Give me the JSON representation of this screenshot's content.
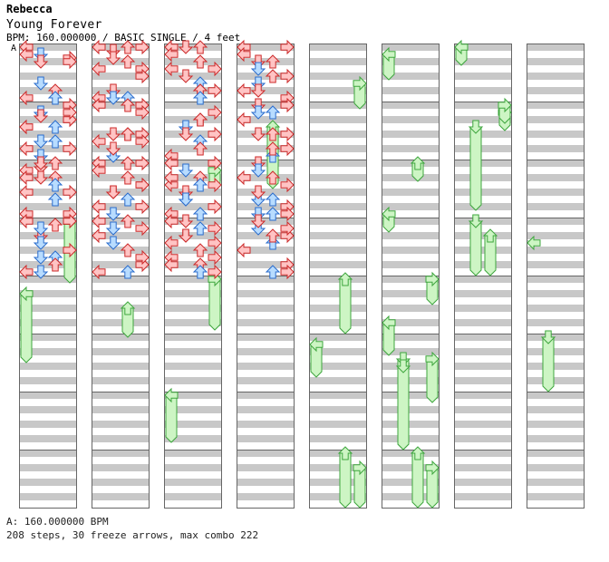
{
  "header": {
    "artist": "Rebecca",
    "title": "Young Forever",
    "info": "BPM: 160.000000 / BASIC SINGLE / 4 feet",
    "bpm_marker": "A"
  },
  "footer": {
    "bpm_line": "A: 160.000000 BPM",
    "stats_line": "208 steps, 30 freeze arrows, max combo 222"
  },
  "colors": {
    "arrow_normal_fill": "#ffc4c4",
    "arrow_normal_stroke": "#cc2a2a",
    "arrow_alt_fill": "#b8dcff",
    "arrow_alt_stroke": "#2a6ccc",
    "freeze_fill": "#cdf5c4",
    "freeze_stroke": "#3ea63e",
    "stripe": "#c8c8c8"
  },
  "chart_data": {
    "type": "step-chart",
    "lanes": [
      "left",
      "down",
      "up",
      "right"
    ],
    "measures_per_column": 8,
    "columns": 8,
    "rows_per_measure": 16,
    "steps": [
      [
        0,
        0,
        2,
        1
      ],
      [
        0,
        0,
        12,
        2
      ],
      [
        0,
        0,
        3,
        3
      ],
      [
        0,
        0,
        4,
        3
      ],
      [
        0,
        0,
        0,
        4
      ],
      [
        0,
        0,
        2,
        4
      ],
      [
        0,
        0,
        14,
        4
      ],
      [
        0,
        0,
        10,
        5
      ],
      [
        0,
        0,
        4,
        5
      ],
      [
        0,
        0,
        14,
        6
      ],
      [
        0,
        1,
        6,
        0
      ],
      [
        0,
        1,
        2,
        1
      ],
      [
        0,
        1,
        14,
        1
      ],
      [
        0,
        1,
        10,
        2
      ],
      [
        0,
        1,
        4,
        3
      ],
      [
        0,
        1,
        0,
        3
      ],
      [
        0,
        1,
        12,
        3
      ],
      [
        0,
        1,
        6,
        4
      ],
      [
        0,
        1,
        12,
        4
      ],
      [
        0,
        1,
        3,
        5
      ],
      [
        0,
        1,
        10,
        5
      ],
      [
        0,
        1,
        6,
        6
      ],
      [
        0,
        1,
        4,
        7
      ],
      [
        0,
        1,
        2,
        7
      ],
      [
        0,
        2,
        2,
        0
      ],
      [
        0,
        2,
        14,
        0
      ],
      [
        0,
        2,
        8,
        0
      ],
      [
        0,
        2,
        1,
        1
      ],
      [
        0,
        2,
        4,
        1
      ],
      [
        0,
        2,
        4,
        2
      ],
      [
        0,
        2,
        10,
        2
      ],
      [
        0,
        2,
        8,
        3
      ],
      [
        0,
        2,
        14,
        3
      ],
      [
        0,
        2,
        4,
        4
      ],
      [
        0,
        2,
        0,
        5
      ],
      [
        0,
        2,
        0,
        6
      ],
      [
        0,
        2,
        6,
        6
      ],
      [
        0,
        3,
        0,
        0
      ],
      [
        0,
        3,
        4,
        1
      ],
      [
        0,
        3,
        10,
        1
      ],
      [
        0,
        3,
        14,
        1
      ],
      [
        0,
        3,
        1,
        2
      ],
      [
        0,
        3,
        10,
        2
      ],
      [
        0,
        3,
        8,
        3
      ],
      [
        0,
        3,
        0,
        3
      ],
      [
        0,
        3,
        14,
        4
      ],
      [
        0,
        3,
        6,
        5
      ],
      [
        0,
        3,
        2,
        5
      ],
      [
        0,
        3,
        12,
        6
      ],
      [
        0,
        3,
        0,
        7
      ],
      [
        1,
        0,
        0,
        0
      ],
      [
        1,
        0,
        6,
        0
      ],
      [
        1,
        0,
        1,
        1
      ],
      [
        1,
        0,
        3,
        1
      ],
      [
        1,
        0,
        12,
        1
      ],
      [
        1,
        0,
        4,
        2
      ],
      [
        1,
        0,
        14,
        2
      ],
      [
        1,
        0,
        6,
        3
      ],
      [
        1,
        0,
        0,
        3
      ],
      [
        1,
        0,
        8,
        3
      ],
      [
        1,
        0,
        14,
        4
      ],
      [
        1,
        0,
        14,
        5
      ],
      [
        1,
        0,
        0,
        6
      ],
      [
        1,
        1,
        0,
        0
      ],
      [
        1,
        1,
        10,
        0
      ],
      [
        1,
        1,
        8,
        1
      ],
      [
        1,
        1,
        14,
        1
      ],
      [
        1,
        1,
        8,
        2
      ],
      [
        1,
        1,
        0,
        3
      ],
      [
        1,
        1,
        2,
        3
      ],
      [
        1,
        1,
        8,
        3
      ],
      [
        1,
        1,
        12,
        5
      ],
      [
        1,
        1,
        0,
        6
      ],
      [
        1,
        1,
        8,
        6
      ],
      [
        1,
        1,
        10,
        7
      ],
      [
        1,
        2,
        0,
        0
      ],
      [
        1,
        2,
        2,
        0
      ],
      [
        1,
        2,
        8,
        1
      ],
      [
        1,
        2,
        0,
        2
      ],
      [
        1,
        2,
        10,
        2
      ],
      [
        1,
        2,
        12,
        3
      ],
      [
        1,
        2,
        6,
        3
      ],
      [
        1,
        2,
        12,
        4
      ],
      [
        1,
        2,
        8,
        5
      ],
      [
        1,
        2,
        14,
        5
      ],
      [
        1,
        2,
        4,
        6
      ],
      [
        1,
        2,
        0,
        7
      ],
      [
        1,
        2,
        6,
        7
      ],
      [
        1,
        3,
        0,
        0
      ],
      [
        1,
        3,
        2,
        1
      ],
      [
        1,
        3,
        0,
        2
      ],
      [
        1,
        3,
        2,
        3
      ],
      [
        1,
        3,
        12,
        3
      ],
      [
        1,
        3,
        4,
        4
      ],
      [
        1,
        3,
        14,
        4
      ],
      [
        1,
        3,
        6,
        5
      ],
      [
        1,
        3,
        8,
        6
      ],
      [
        1,
        3,
        14,
        6
      ],
      [
        1,
        3,
        10,
        7
      ],
      [
        2,
        0,
        0,
        0
      ],
      [
        2,
        0,
        6,
        0
      ],
      [
        2,
        0,
        0,
        1
      ],
      [
        2,
        0,
        0,
        2
      ],
      [
        2,
        0,
        4,
        2
      ],
      [
        2,
        0,
        10,
        2
      ],
      [
        2,
        0,
        12,
        2
      ],
      [
        2,
        0,
        12,
        3
      ],
      [
        2,
        0,
        2,
        4
      ],
      [
        2,
        0,
        8,
        5
      ],
      [
        2,
        0,
        12,
        6
      ],
      [
        2,
        0,
        14,
        6
      ],
      [
        2,
        0,
        6,
        7
      ],
      [
        2,
        1,
        6,
        1
      ],
      [
        2,
        1,
        4,
        2
      ],
      [
        2,
        1,
        10,
        2
      ],
      [
        2,
        1,
        8,
        3
      ],
      [
        2,
        1,
        14,
        4
      ],
      [
        2,
        1,
        8,
        5
      ],
      [
        2,
        1,
        4,
        6
      ],
      [
        2,
        1,
        12,
        6
      ],
      [
        2,
        1,
        2,
        7
      ],
      [
        2,
        2,
        0,
        0
      ],
      [
        2,
        2,
        6,
        0
      ],
      [
        2,
        2,
        2,
        1
      ],
      [
        2,
        2,
        8,
        1
      ],
      [
        2,
        2,
        10,
        1
      ],
      [
        2,
        2,
        4,
        2
      ],
      [
        2,
        2,
        14,
        2
      ],
      [
        2,
        2,
        0,
        3
      ],
      [
        2,
        2,
        6,
        3
      ],
      [
        2,
        2,
        12,
        3
      ],
      [
        2,
        2,
        4,
        4
      ],
      [
        2,
        2,
        14,
        4
      ],
      [
        2,
        2,
        10,
        5
      ],
      [
        2,
        2,
        6,
        6
      ],
      [
        2,
        3,
        0,
        0
      ],
      [
        2,
        3,
        10,
        0
      ],
      [
        2,
        3,
        0,
        1
      ],
      [
        2,
        3,
        4,
        1
      ],
      [
        2,
        3,
        8,
        2
      ],
      [
        2,
        3,
        12,
        2
      ],
      [
        2,
        3,
        6,
        3
      ],
      [
        2,
        3,
        10,
        3
      ],
      [
        2,
        3,
        14,
        3
      ],
      [
        2,
        3,
        6,
        4
      ],
      [
        2,
        3,
        12,
        4
      ],
      [
        2,
        3,
        4,
        5
      ],
      [
        2,
        3,
        2,
        6
      ],
      [
        2,
        3,
        14,
        6
      ],
      [
        2,
        3,
        2,
        7
      ],
      [
        3,
        0,
        0,
        0
      ],
      [
        3,
        0,
        4,
        1
      ],
      [
        3,
        0,
        10,
        1
      ],
      [
        3,
        0,
        8,
        2
      ],
      [
        3,
        0,
        14,
        3
      ],
      [
        3,
        0,
        2,
        4
      ],
      [
        3,
        0,
        12,
        4
      ],
      [
        3,
        0,
        6,
        5
      ],
      [
        3,
        0,
        12,
        5
      ],
      [
        3,
        0,
        4,
        6
      ],
      [
        3,
        0,
        0,
        7
      ],
      [
        3,
        0,
        8,
        7
      ],
      [
        3,
        1,
        0,
        1
      ],
      [
        3,
        1,
        2,
        1
      ],
      [
        3,
        1,
        8,
        2
      ],
      [
        3,
        1,
        14,
        2
      ],
      [
        3,
        1,
        8,
        3
      ],
      [
        3,
        1,
        12,
        3
      ],
      [
        3,
        1,
        4,
        4
      ],
      [
        3,
        1,
        8,
        5
      ],
      [
        3,
        1,
        2,
        6
      ],
      [
        3,
        1,
        12,
        6
      ],
      [
        3,
        1,
        0,
        7
      ],
      [
        3,
        2,
        0,
        1
      ],
      [
        3,
        2,
        2,
        1
      ],
      [
        3,
        2,
        10,
        1
      ],
      [
        3,
        2,
        4,
        2
      ],
      [
        3,
        2,
        14,
        2
      ],
      [
        3,
        2,
        6,
        3
      ],
      [
        3,
        2,
        12,
        3
      ],
      [
        3,
        2,
        4,
        4
      ],
      [
        3,
        2,
        8,
        5
      ],
      [
        3,
        2,
        14,
        5
      ],
      [
        3,
        2,
        10,
        6
      ],
      [
        3,
        2,
        14,
        7
      ],
      [
        3,
        3,
        2,
        1
      ],
      [
        3,
        3,
        6,
        2
      ],
      [
        3,
        3,
        14,
        2
      ],
      [
        3,
        3,
        4,
        3
      ],
      [
        3,
        3,
        12,
        3
      ],
      [
        3,
        3,
        8,
        4
      ],
      [
        3,
        3,
        0,
        5
      ],
      [
        3,
        3,
        4,
        6
      ],
      [
        3,
        3,
        14,
        7
      ],
      [
        3,
        3,
        2,
        7
      ]
    ],
    "freezes": [
      [
        0,
        3,
        0,
        3,
        1,
        4,
        0
      ],
      [
        0,
        4,
        4,
        0,
        1,
        5,
        6
      ],
      [
        1,
        4,
        8,
        2,
        1,
        4,
        15
      ],
      [
        2,
        2,
        2,
        3,
        2,
        2,
        6
      ],
      [
        2,
        4,
        0,
        3,
        2,
        4,
        13
      ],
      [
        2,
        6,
        0,
        0,
        2,
        6,
        12
      ],
      [
        3,
        1,
        6,
        2,
        3,
        2,
        6
      ],
      [
        4,
        0,
        10,
        3,
        4,
        1,
        0
      ],
      [
        4,
        4,
        0,
        2,
        4,
        4,
        14
      ],
      [
        4,
        5,
        2,
        0,
        4,
        5,
        10
      ],
      [
        4,
        7,
        0,
        2,
        4,
        7,
        14
      ],
      [
        4,
        7,
        4,
        3,
        4,
        7,
        14
      ],
      [
        5,
        2,
        0,
        2,
        5,
        2,
        4
      ],
      [
        5,
        4,
        0,
        3,
        5,
        4,
        6
      ],
      [
        5,
        4,
        12,
        0,
        5,
        5,
        4
      ],
      [
        5,
        0,
        2,
        0,
        5,
        0,
        8
      ],
      [
        5,
        2,
        14,
        0,
        5,
        3,
        2
      ],
      [
        5,
        5,
        6,
        1,
        5,
        6,
        14
      ],
      [
        5,
        5,
        6,
        3,
        5,
        6,
        1
      ],
      [
        5,
        5,
        8,
        1,
        5,
        6,
        14
      ],
      [
        5,
        7,
        0,
        2,
        5,
        7,
        14
      ],
      [
        5,
        7,
        4,
        3,
        5,
        7,
        14
      ],
      [
        6,
        0,
        0,
        0,
        6,
        0,
        4
      ],
      [
        6,
        1,
        2,
        3,
        6,
        1,
        6
      ],
      [
        6,
        1,
        6,
        1,
        6,
        2,
        12
      ],
      [
        6,
        3,
        0,
        1,
        6,
        3,
        14
      ],
      [
        6,
        3,
        4,
        2,
        6,
        3,
        14
      ],
      [
        6,
        1,
        0,
        3,
        6,
        1,
        4
      ],
      [
        7,
        5,
        0,
        1,
        7,
        5,
        14
      ],
      [
        7,
        3,
        6,
        0,
        7,
        3,
        6
      ]
    ]
  }
}
